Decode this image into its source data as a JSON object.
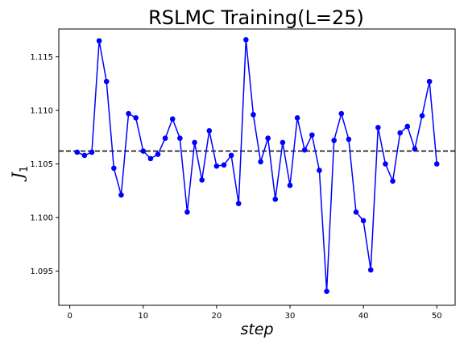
{
  "chart_data": {
    "type": "line",
    "title": "RSLMC Training(L=25)",
    "xlabel": "step",
    "ylabel": "J",
    "ylabel_subscript": "1",
    "xlim": [
      -1.5,
      52.5
    ],
    "ylim": [
      1.0918,
      1.1176
    ],
    "xticks": [
      0,
      10,
      20,
      30,
      40,
      50
    ],
    "yticks": [
      1.095,
      1.1,
      1.105,
      1.11,
      1.115
    ],
    "ytick_labels": [
      "1.095",
      "1.100",
      "1.105",
      "1.110",
      "1.115"
    ],
    "grid": false,
    "legend": "none",
    "reference_line": {
      "y": 1.1062,
      "style": "dashed",
      "color": "#000000"
    },
    "series": [
      {
        "color": "#0000ff",
        "marker": "circle",
        "x": [
          1,
          2,
          3,
          4,
          5,
          6,
          7,
          8,
          9,
          10,
          11,
          12,
          13,
          14,
          15,
          16,
          17,
          18,
          19,
          20,
          21,
          22,
          23,
          24,
          25,
          26,
          27,
          28,
          29,
          30,
          31,
          32,
          33,
          34,
          35,
          36,
          37,
          38,
          39,
          40,
          41,
          42,
          43,
          44,
          45,
          46,
          47,
          48,
          49,
          50
        ],
        "y": [
          1.1061,
          1.1058,
          1.1061,
          1.1165,
          1.1127,
          1.1046,
          1.1021,
          1.1097,
          1.1093,
          1.1062,
          1.1055,
          1.1059,
          1.1074,
          1.1092,
          1.1074,
          1.1005,
          1.107,
          1.1035,
          1.1081,
          1.1048,
          1.1049,
          1.1058,
          1.1013,
          1.1166,
          1.1096,
          1.1052,
          1.1074,
          1.1017,
          1.107,
          1.103,
          1.1093,
          1.1063,
          1.1077,
          1.1044,
          1.0931,
          1.1072,
          1.1097,
          1.1073,
          1.1005,
          1.0997,
          1.0951,
          1.1084,
          1.105,
          1.1034,
          1.1079,
          1.1085,
          1.1064,
          1.1095,
          1.1127,
          1.105
        ]
      }
    ]
  }
}
